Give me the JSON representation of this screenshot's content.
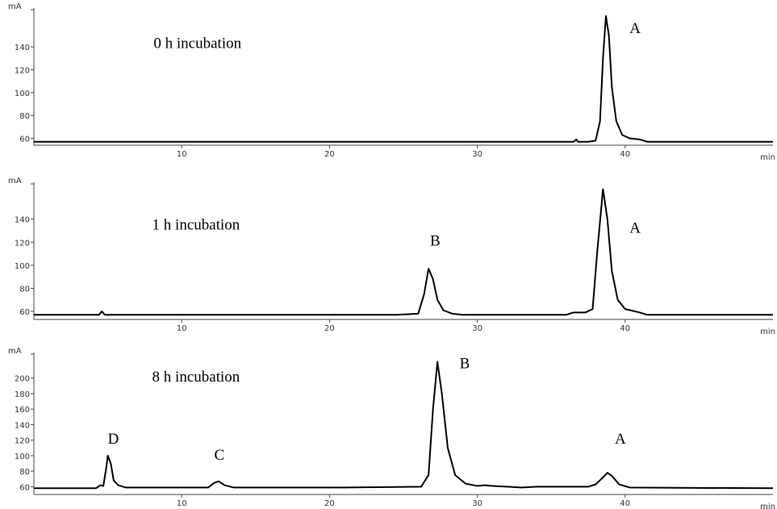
{
  "chart_data": [
    {
      "type": "line",
      "y_label": "mA",
      "x_label": "min",
      "xlim": [
        0,
        50
      ],
      "xticks": [
        10,
        20,
        30,
        40
      ],
      "ylim": [
        54,
        174
      ],
      "yticks": [
        60,
        80,
        100,
        120,
        140
      ],
      "x": [
        0,
        36.5,
        36.7,
        36.8,
        37.5,
        38.0,
        38.3,
        38.5,
        38.7,
        38.9,
        39.1,
        39.4,
        39.8,
        40.3,
        41.0,
        41.5,
        50
      ],
      "series": [
        {
          "color": "#000000",
          "values": [
            57,
            57,
            59,
            57,
            57,
            58,
            75,
            130,
            167,
            150,
            105,
            75,
            63,
            60,
            59,
            57,
            57
          ]
        }
      ],
      "annotations": [
        {
          "text": "0 h incubation",
          "x": 8.1,
          "y": 144
        },
        {
          "text": "A",
          "x": 40.3,
          "y": 157
        }
      ]
    },
    {
      "type": "line",
      "y_label": "mA",
      "x_label": "min",
      "xlim": [
        0,
        50
      ],
      "xticks": [
        10,
        20,
        30,
        40
      ],
      "ylim": [
        53,
        172
      ],
      "yticks": [
        60,
        80,
        100,
        120,
        140
      ],
      "x": [
        0,
        4.4,
        4.6,
        4.8,
        24.5,
        26.0,
        26.4,
        26.7,
        27.0,
        27.3,
        27.7,
        28.3,
        29,
        36,
        36.5,
        37.3,
        37.8,
        38.1,
        38.5,
        38.8,
        39.1,
        39.5,
        40,
        41,
        41.5,
        50
      ],
      "series": [
        {
          "color": "#000000",
          "values": [
            57,
            57,
            60,
            57,
            57,
            58,
            75,
            97,
            88,
            70,
            61,
            58,
            57,
            57,
            59,
            59,
            62,
            110,
            166,
            140,
            95,
            70,
            62,
            59,
            57,
            57
          ]
        }
      ],
      "annotations": [
        {
          "text": "1 h incubation",
          "x": 8.0,
          "y": 136
        },
        {
          "text": "B",
          "x": 26.8,
          "y": 122
        },
        {
          "text": "A",
          "x": 40.3,
          "y": 133
        }
      ]
    },
    {
      "type": "line",
      "y_label": "mA",
      "x_label": "min",
      "xlim": [
        0,
        50
      ],
      "xticks": [
        10,
        20,
        30,
        40
      ],
      "ylim": [
        50,
        233
      ],
      "yticks": [
        60,
        80,
        100,
        120,
        140,
        160,
        180,
        200
      ],
      "x": [
        0,
        4.2,
        4.5,
        4.7,
        4.9,
        5.0,
        5.2,
        5.4,
        5.7,
        6.2,
        11.8,
        12.2,
        12.5,
        12.9,
        13.5,
        21,
        26.2,
        26.7,
        27.0,
        27.3,
        27.6,
        28.0,
        28.5,
        29.2,
        30,
        30.5,
        31,
        33,
        34,
        37.5,
        38.0,
        38.5,
        38.8,
        39.1,
        39.6,
        40.3,
        50
      ],
      "series": [
        {
          "color": "#000000",
          "values": [
            58,
            58,
            62,
            61,
            85,
            100,
            90,
            68,
            62,
            59,
            59,
            65,
            67,
            62,
            59,
            59,
            60,
            75,
            160,
            221,
            180,
            110,
            75,
            64,
            61,
            62,
            61,
            59,
            60,
            60,
            63,
            72,
            78,
            74,
            63,
            59,
            58
          ]
        }
      ],
      "annotations": [
        {
          "text": "8 h incubation",
          "x": 8.0,
          "y": 203
        },
        {
          "text": "B",
          "x": 28.8,
          "y": 220
        },
        {
          "text": "D",
          "x": 5.0,
          "y": 123
        },
        {
          "text": "C",
          "x": 12.2,
          "y": 102
        },
        {
          "text": "A",
          "x": 39.3,
          "y": 123
        }
      ]
    }
  ]
}
